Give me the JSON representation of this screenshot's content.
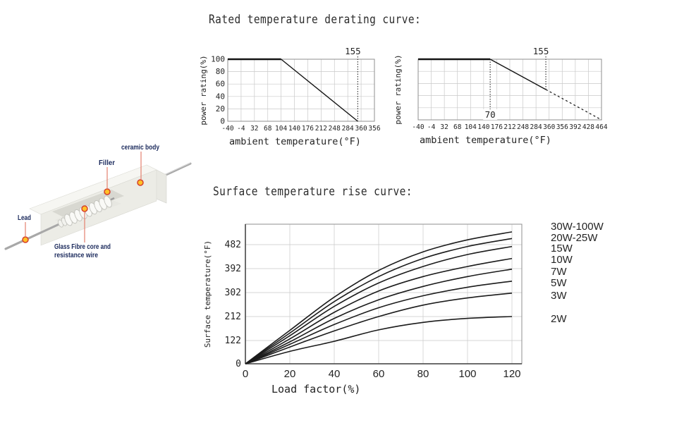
{
  "titles": {
    "derating": "Rated temperature derating curve:",
    "surface": "Surface temperature rise curve:"
  },
  "diagram": {
    "labels": {
      "ceramic_body": "ceramic body",
      "filler": "Filler",
      "lead": "Lead",
      "glass_line1": "Glass Fibre core and",
      "glass_line2": "resistance wire"
    },
    "colors": {
      "label_text": "#1b2a5c",
      "leader_line": "#e4806e",
      "dot_fill": "#ffc127",
      "dot_ring": "#d6402b",
      "ceramic_body_fill": "#f6f6f2",
      "lead_wire": "#a8a8a8"
    }
  },
  "chart_data": [
    {
      "type": "line",
      "name": "derating-curve-left",
      "xlabel": "ambient temperature(°F)",
      "ylabel": "power rating(%)",
      "x_ticks": [
        "-40",
        "-4",
        "32",
        "68",
        "104",
        "140",
        "176",
        "212",
        "248",
        "284",
        "360",
        "356"
      ],
      "y_ticks": [
        "100",
        "80",
        "60",
        "40",
        "20",
        "0"
      ],
      "xlim": [
        -40,
        356
      ],
      "ylim": [
        0,
        100
      ],
      "grid": true,
      "series": [
        {
          "name": "power rating",
          "points": [
            [
              -40,
              100
            ],
            [
              104,
              100
            ],
            [
              311,
              0
            ]
          ]
        }
      ],
      "annotations": [
        {
          "label": "155",
          "x": 311,
          "placement": "top",
          "extend_to": "bottom"
        }
      ]
    },
    {
      "type": "line",
      "name": "derating-curve-right",
      "xlabel": "ambient temperature(°F)",
      "ylabel": "power rating(%)",
      "x_ticks": [
        "-40",
        "-4",
        "32",
        "68",
        "104",
        "140",
        "176",
        "212",
        "248",
        "284",
        "360",
        "356",
        "392",
        "428",
        "464"
      ],
      "y_ticks": [],
      "xlim": [
        -40,
        464
      ],
      "ylim": [
        0,
        100
      ],
      "grid": true,
      "series": [
        {
          "name": "power rating",
          "points": [
            [
              -40,
              100
            ],
            [
              158,
              100
            ],
            [
              311,
              50
            ]
          ],
          "dashed_tail": [
            [
              311,
              50
            ],
            [
              464,
              0
            ]
          ]
        }
      ],
      "annotations": [
        {
          "label": "155",
          "x": 311,
          "placement": "top",
          "extend_to": "data",
          "data_y": 50
        },
        {
          "label": "70",
          "x": 158,
          "placement": "bottom",
          "extend_to": "bottom"
        }
      ]
    },
    {
      "type": "line",
      "name": "surface-temperature-rise",
      "xlabel": "Load factor(%)",
      "ylabel": "Surface temperature(°F)",
      "x": [
        0,
        20,
        40,
        60,
        80,
        100,
        120
      ],
      "x_ticks": [
        "0",
        "20",
        "40",
        "60",
        "80",
        "100",
        "120"
      ],
      "y_ticks": [
        "0",
        "122",
        "212",
        "302",
        "392",
        "482"
      ],
      "y_tick_values": [
        0,
        122,
        212,
        302,
        392,
        482
      ],
      "grid": true,
      "legend_position": "right",
      "series": [
        {
          "name": "30W-100W",
          "values": [
            0,
            160,
            285,
            385,
            455,
            500,
            530
          ]
        },
        {
          "name": "20W-25W",
          "values": [
            0,
            150,
            268,
            362,
            430,
            475,
            505
          ]
        },
        {
          "name": "15W",
          "values": [
            0,
            140,
            250,
            338,
            400,
            445,
            475
          ]
        },
        {
          "name": "10W",
          "values": [
            0,
            128,
            228,
            308,
            362,
            400,
            430
          ]
        },
        {
          "name": "7W",
          "values": [
            0,
            115,
            205,
            275,
            325,
            362,
            390
          ]
        },
        {
          "name": "5W",
          "values": [
            0,
            102,
            182,
            245,
            290,
            322,
            345
          ]
        },
        {
          "name": "3W",
          "values": [
            0,
            88,
            158,
            212,
            255,
            282,
            300
          ]
        },
        {
          "name": "2W",
          "values": [
            0,
            65,
            118,
            162,
            190,
            205,
            212
          ]
        }
      ]
    }
  ]
}
